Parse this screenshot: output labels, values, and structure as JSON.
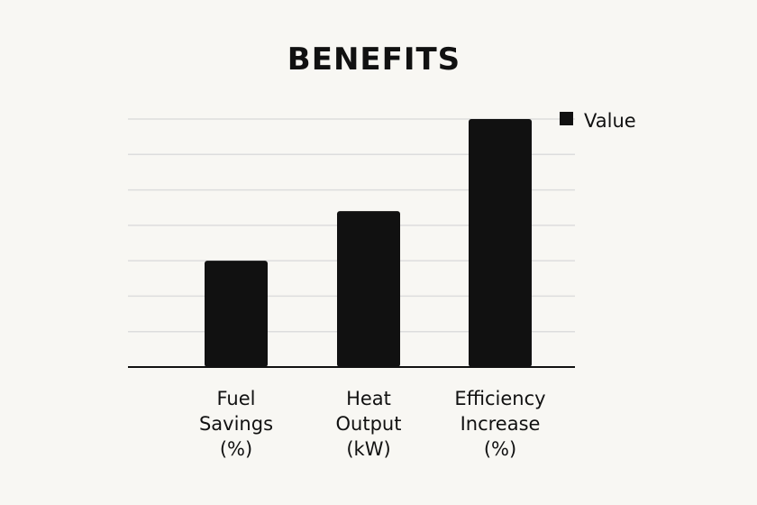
{
  "chart_data": {
    "type": "bar",
    "title": "BENEFITS",
    "categories": [
      [
        "Fuel",
        "Savings",
        "(%)"
      ],
      [
        "Heat",
        "Output",
        "(kW)"
      ],
      [
        "Efficiency",
        "Increase",
        "(%)"
      ]
    ],
    "series": [
      {
        "name": "Value",
        "values": [
          30,
          44,
          70
        ],
        "color": "#111111"
      }
    ],
    "ylim": [
      0,
      70
    ],
    "grid": true,
    "legend": "top-right",
    "colors": {
      "background": "#f8f7f3",
      "grid": "#dddddd",
      "axis": "#111111",
      "bar": "#111111"
    }
  }
}
